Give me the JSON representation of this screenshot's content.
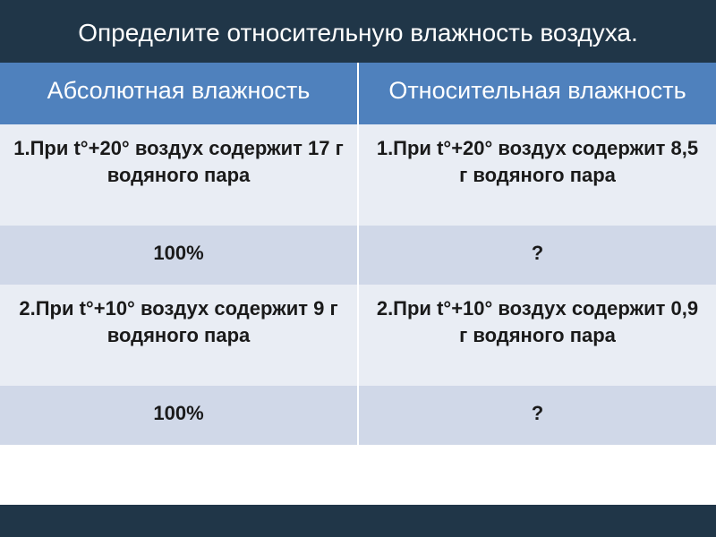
{
  "colors": {
    "dark_bg": "#203648",
    "blue_header": "#4f81bd",
    "row_light": "#e9edf4",
    "row_mid": "#d0d8e8",
    "white": "#ffffff",
    "text_dark": "#1a1a1a"
  },
  "typography": {
    "title_size": 28,
    "header_size": 27,
    "cell_size": 22,
    "family": "Arial, sans-serif"
  },
  "title": "Определите относительную влажность воздуха.",
  "table": {
    "headers": [
      "Абсолютная влажность",
      "Относительная влажность"
    ],
    "rows": [
      {
        "left": "1.При t°+20° воздух содержит 17 г водяного пара",
        "right": "1.При t°+20° воздух содержит 8,5 г водяного пара",
        "bg": "row_light",
        "tall": true
      },
      {
        "left": "100%",
        "right": "?",
        "bg": "row_mid",
        "tall": false
      },
      {
        "left": "2.При t°+10° воздух содержит 9 г водяного пара",
        "right": "2.При t°+10° воздух содержит 0,9 г водяного пара",
        "bg": "row_light",
        "tall": true
      },
      {
        "left": "100%",
        "right": "?",
        "bg": "row_mid",
        "tall": false
      }
    ]
  }
}
